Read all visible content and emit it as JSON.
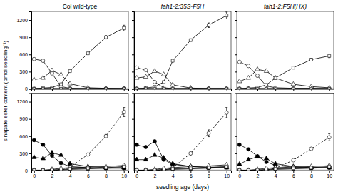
{
  "chart_data": [
    {
      "type": "line",
      "title": "Col wild-type",
      "ylabel": "sinapate ester content (pmol seedling⁻¹)",
      "x": [
        0,
        1,
        2,
        3,
        4,
        6,
        8,
        10
      ],
      "xlim": [
        -0.3,
        10.5
      ],
      "xticks": [
        0,
        2,
        4,
        6,
        8,
        10
      ],
      "ylim": [
        0,
        1350
      ],
      "yticks": [
        0,
        300,
        600,
        900,
        1200
      ],
      "band": [
        0,
        20
      ],
      "tick_labels": "y",
      "series": [
        {
          "marker": "open-circle",
          "line_style": "solid",
          "color": "black",
          "values": [
            520,
            490,
            270,
            40,
            10,
            5,
            5,
            5
          ]
        },
        {
          "marker": "open-triangle",
          "line_style": "solid",
          "color": "black",
          "values": [
            160,
            190,
            320,
            250,
            90,
            20,
            10,
            5
          ]
        },
        {
          "marker": "open-square",
          "line_style": "solid",
          "color": "black",
          "values": [
            5,
            15,
            25,
            80,
            310,
            620,
            900,
            1060
          ],
          "errors": [
            0,
            0,
            0,
            0,
            0,
            0,
            30,
            50
          ]
        },
        {
          "marker": "open-diamond",
          "line_style": "solid",
          "color": "black",
          "values": [
            5,
            5,
            5,
            5,
            5,
            5,
            5,
            5
          ]
        },
        {
          "marker": "open-triangle-down",
          "line_style": "solid",
          "color": "black",
          "values": [
            5,
            5,
            5,
            5,
            5,
            5,
            5,
            5
          ]
        }
      ]
    },
    {
      "type": "line",
      "title": "fah1-2:35S-F5H",
      "x": [
        0,
        1,
        2,
        3,
        4,
        6,
        8,
        10
      ],
      "xlim": [
        -0.3,
        10.5
      ],
      "xticks": [
        0,
        2,
        4,
        6,
        8,
        10
      ],
      "ylim": [
        0,
        1350
      ],
      "yticks": [
        0,
        300,
        600,
        900,
        1200
      ],
      "band": [
        0,
        20
      ],
      "tick_labels": false,
      "series": [
        {
          "marker": "open-circle",
          "line_style": "solid",
          "color": "black",
          "values": [
            370,
            330,
            120,
            20,
            5,
            5,
            5,
            5
          ]
        },
        {
          "marker": "open-triangle",
          "line_style": "solid",
          "color": "black",
          "values": [
            190,
            210,
            310,
            250,
            70,
            15,
            5,
            5
          ]
        },
        {
          "marker": "open-square",
          "line_style": "solid",
          "color": "black",
          "values": [
            5,
            15,
            35,
            120,
            490,
            850,
            1110,
            1280
          ],
          "errors": [
            0,
            0,
            0,
            0,
            0,
            0,
            40,
            60
          ]
        },
        {
          "marker": "open-diamond",
          "line_style": "solid",
          "color": "black",
          "values": [
            5,
            5,
            5,
            5,
            5,
            5,
            5,
            5
          ]
        },
        {
          "marker": "open-triangle-down",
          "line_style": "solid",
          "color": "black",
          "values": [
            5,
            5,
            5,
            5,
            5,
            5,
            5,
            5
          ]
        }
      ]
    },
    {
      "type": "line",
      "title": "fah1-2:F5H(HX)",
      "x": [
        0,
        1,
        2,
        3,
        4,
        6,
        8,
        10
      ],
      "xlim": [
        -0.3,
        10.5
      ],
      "xticks": [
        0,
        2,
        4,
        6,
        8,
        10
      ],
      "ylim": [
        0,
        1350
      ],
      "yticks": [
        0,
        300,
        600,
        900,
        1200
      ],
      "band": [
        0,
        20
      ],
      "tick_labels": false,
      "series": [
        {
          "marker": "open-circle",
          "line_style": "solid",
          "color": "black",
          "values": [
            470,
            400,
            230,
            50,
            20,
            10,
            10,
            5
          ]
        },
        {
          "marker": "open-triangle",
          "line_style": "solid",
          "color": "black",
          "values": [
            130,
            190,
            340,
            310,
            190,
            80,
            40,
            20
          ]
        },
        {
          "marker": "open-square",
          "line_style": "solid",
          "color": "black",
          "values": [
            5,
            15,
            25,
            70,
            190,
            370,
            510,
            575
          ],
          "errors": [
            0,
            0,
            0,
            0,
            0,
            0,
            20,
            30
          ]
        },
        {
          "marker": "open-diamond",
          "line_style": "solid",
          "color": "black",
          "values": [
            5,
            5,
            5,
            5,
            5,
            5,
            5,
            5
          ]
        },
        {
          "marker": "open-triangle-down",
          "line_style": "solid",
          "color": "black",
          "values": [
            5,
            5,
            5,
            5,
            5,
            5,
            5,
            5
          ]
        }
      ]
    },
    {
      "type": "line",
      "xlabel": "seedling age (days)",
      "x": [
        0,
        1,
        2,
        3,
        4,
        6,
        8,
        10
      ],
      "xlim": [
        -0.3,
        10.5
      ],
      "xticks": [
        0,
        2,
        4,
        6,
        8,
        10
      ],
      "ylim": [
        0,
        1350
      ],
      "yticks": [
        0,
        300,
        600,
        900,
        1200
      ],
      "band": [
        0,
        20
      ],
      "series": [
        {
          "marker": "filled-circle",
          "line_style": "solid",
          "color": "black",
          "values": [
            530,
            450,
            260,
            130,
            70,
            50,
            40,
            40
          ]
        },
        {
          "marker": "filled-triangle",
          "line_style": "solid",
          "color": "black",
          "values": [
            230,
            210,
            310,
            270,
            120,
            70,
            50,
            50
          ]
        },
        {
          "marker": "filled-square",
          "line_style": "solid",
          "color": "black",
          "values": [
            5,
            5,
            5,
            10,
            20,
            30,
            40,
            50
          ]
        },
        {
          "marker": "open-circle",
          "line_style": "dashed",
          "color": "black",
          "values": [
            5,
            5,
            5,
            5,
            60,
            280,
            600,
            1020
          ],
          "errors": [
            0,
            0,
            0,
            0,
            0,
            0,
            30,
            80
          ]
        },
        {
          "marker": "open-triangle",
          "line_style": "solid",
          "color": "black",
          "values": [
            5,
            5,
            20,
            40,
            50,
            60,
            70,
            90
          ]
        },
        {
          "marker": "open-square",
          "line_style": "solid",
          "color": "black",
          "values": [
            5,
            5,
            10,
            20,
            30,
            40,
            50,
            70
          ]
        }
      ]
    },
    {
      "type": "line",
      "x": [
        0,
        1,
        2,
        3,
        4,
        6,
        8,
        10
      ],
      "xlim": [
        -0.3,
        10.5
      ],
      "xticks": [
        0,
        2,
        4,
        6,
        8,
        10
      ],
      "ylim": [
        0,
        1350
      ],
      "yticks": [
        0,
        300,
        600,
        900,
        1200
      ],
      "band": [
        0,
        20
      ],
      "tick_labels": "x",
      "series": [
        {
          "marker": "filled-circle",
          "line_style": "solid",
          "color": "black",
          "values": [
            450,
            410,
            510,
            190,
            110,
            70,
            60,
            60
          ]
        },
        {
          "marker": "filled-triangle",
          "line_style": "solid",
          "color": "black",
          "values": [
            190,
            190,
            270,
            220,
            120,
            70,
            50,
            50
          ]
        },
        {
          "marker": "filled-square",
          "line_style": "solid",
          "color": "black",
          "values": [
            5,
            5,
            5,
            10,
            20,
            30,
            40,
            50
          ]
        },
        {
          "marker": "open-circle",
          "line_style": "dashed",
          "color": "black",
          "values": [
            5,
            5,
            5,
            5,
            50,
            300,
            650,
            1010
          ],
          "errors": [
            0,
            0,
            0,
            0,
            0,
            40,
            60,
            90
          ]
        },
        {
          "marker": "open-triangle",
          "line_style": "solid",
          "color": "black",
          "values": [
            5,
            5,
            20,
            40,
            50,
            70,
            80,
            100
          ]
        },
        {
          "marker": "open-square",
          "line_style": "solid",
          "color": "black",
          "values": [
            5,
            5,
            10,
            20,
            30,
            40,
            50,
            70
          ]
        }
      ]
    },
    {
      "type": "line",
      "x": [
        0,
        1,
        2,
        3,
        4,
        6,
        8,
        10
      ],
      "xlim": [
        -0.3,
        10.5
      ],
      "xticks": [
        0,
        2,
        4,
        6,
        8,
        10
      ],
      "ylim": [
        0,
        1350
      ],
      "yticks": [
        0,
        300,
        600,
        900,
        1200
      ],
      "band": [
        0,
        20
      ],
      "tick_labels": "x",
      "series": [
        {
          "marker": "filled-circle",
          "line_style": "solid",
          "color": "black",
          "values": [
            450,
            370,
            250,
            150,
            90,
            60,
            50,
            50
          ]
        },
        {
          "marker": "filled-triangle",
          "line_style": "solid",
          "color": "black",
          "values": [
            110,
            190,
            240,
            210,
            120,
            70,
            50,
            50
          ]
        },
        {
          "marker": "filled-square",
          "line_style": "solid",
          "color": "black",
          "values": [
            5,
            5,
            5,
            10,
            20,
            30,
            40,
            50
          ]
        },
        {
          "marker": "open-circle",
          "line_style": "dashed",
          "color": "black",
          "values": [
            5,
            5,
            5,
            5,
            40,
            180,
            380,
            580
          ],
          "errors": [
            0,
            0,
            0,
            0,
            0,
            0,
            20,
            60
          ]
        },
        {
          "marker": "open-triangle",
          "line_style": "solid",
          "color": "black",
          "values": [
            5,
            5,
            20,
            40,
            50,
            60,
            70,
            85
          ]
        },
        {
          "marker": "open-square",
          "line_style": "solid",
          "color": "black",
          "values": [
            5,
            5,
            10,
            20,
            30,
            40,
            50,
            70
          ]
        }
      ]
    }
  ]
}
